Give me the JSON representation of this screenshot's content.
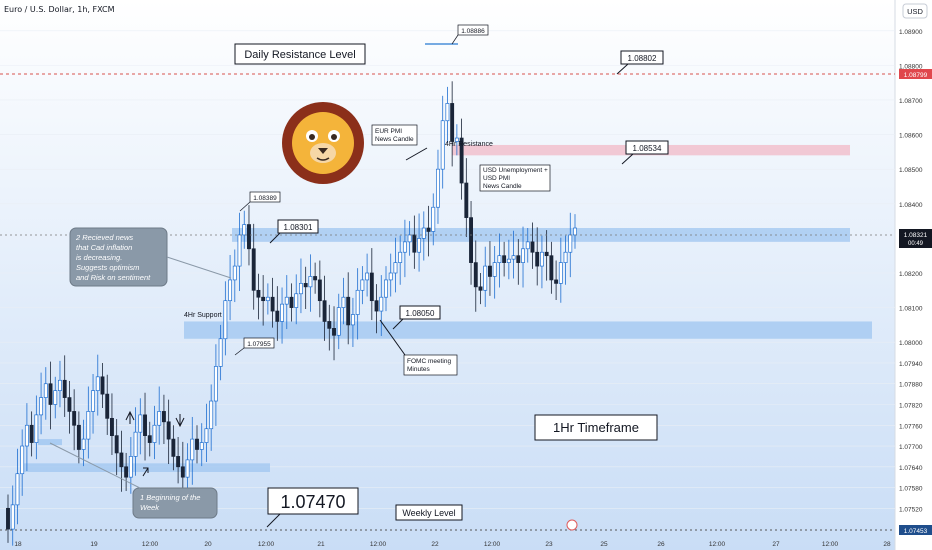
{
  "header": {
    "title": "Euro / U.S. Dollar, 1h, FXCM",
    "currency_button": "USD"
  },
  "chart_data": {
    "type": "candlestick",
    "title": "Euro / U.S. Dollar, 1h, FXCM",
    "ylim": [
      1.0744,
      1.0896
    ],
    "x_ticks": [
      "18",
      "19",
      "12:00",
      "20",
      "12:00",
      "21",
      "12:00",
      "22",
      "12:00",
      "23",
      "25",
      "26",
      "12:00",
      "27",
      "12:00",
      "28"
    ],
    "y_ticks": [
      "1.08900",
      "1.08800",
      "1.08700",
      "1.08600",
      "1.08500",
      "1.08400",
      "1.08200",
      "1.08100",
      "1.08000",
      "1.07940",
      "1.07880",
      "1.07820",
      "1.07760",
      "1.07700",
      "1.07640",
      "1.07580",
      "1.07520"
    ],
    "price_labels": [
      {
        "value": "1.08799",
        "kind": "resistance"
      },
      {
        "value": "1.08321",
        "sub": "00:49",
        "kind": "current"
      },
      {
        "value": "1.07453",
        "kind": "weekly"
      }
    ],
    "zones": [
      {
        "name": "resistance-4h-zone",
        "low": 1.0854,
        "high": 1.0857,
        "color": "#f2b8c6"
      },
      {
        "name": "resistance-band-zone",
        "low": 1.0829,
        "high": 1.0833,
        "color": "#9fc5f0"
      },
      {
        "name": "support-4h-zone",
        "low": 1.0801,
        "high": 1.0806,
        "color": "#9fc5f0"
      },
      {
        "name": "low-support-zone",
        "low": 1.07625,
        "high": 1.0765,
        "color": "#9fc5f0"
      }
    ],
    "candles_close": [
      1.0746,
      1.0753,
      1.0762,
      1.077,
      1.0776,
      1.0771,
      1.0779,
      1.0784,
      1.0788,
      1.0782,
      1.0786,
      1.0789,
      1.0784,
      1.078,
      1.0776,
      1.0769,
      1.0772,
      1.078,
      1.0786,
      1.079,
      1.0785,
      1.0778,
      1.0773,
      1.0768,
      1.0764,
      1.0761,
      1.0767,
      1.0774,
      1.0779,
      1.0773,
      1.0771,
      1.0776,
      1.078,
      1.0777,
      1.0772,
      1.0767,
      1.0764,
      1.0761,
      1.0766,
      1.0772,
      1.0769,
      1.0771,
      1.0775,
      1.0783,
      1.0793,
      1.0801,
      1.0812,
      1.0818,
      1.0822,
      1.0831,
      1.0834,
      1.0827,
      1.0815,
      1.0813,
      1.0812,
      1.0813,
      1.0809,
      1.0806,
      1.0811,
      1.0813,
      1.081,
      1.0814,
      1.0817,
      1.0816,
      1.0819,
      1.0818,
      1.0812,
      1.0806,
      1.0804,
      1.0802,
      1.081,
      1.0813,
      1.0805,
      1.0808,
      1.0815,
      1.0818,
      1.082,
      1.0812,
      1.0809,
      1.0813,
      1.0818,
      1.082,
      1.0823,
      1.0826,
      1.0829,
      1.0831,
      1.0826,
      1.083,
      1.0833,
      1.0832,
      1.0839,
      1.085,
      1.0864,
      1.0869,
      1.0858,
      1.0859,
      1.0846,
      1.0836,
      1.0823,
      1.0816,
      1.0815,
      1.0822,
      1.0819,
      1.0823,
      1.0825,
      1.0823,
      1.0824,
      1.0825,
      1.0823,
      1.0827,
      1.0829,
      1.0826,
      1.0822,
      1.0826,
      1.0825,
      1.0818,
      1.0817,
      1.0823,
      1.0826,
      1.0831,
      1.0833
    ],
    "annotations": {
      "daily_resistance": "Daily Resistance Level",
      "four_hr_resistance": "4Hr Resistance",
      "four_hr_support": "4Hr Support",
      "weekly_level": "Weekly Level",
      "timeframe": "1Hr Timeframe",
      "eur_pmi": "EUR PMI\nNews Candle",
      "usd_unemployment": "USD Unemployment +\nUSD PMI\nNews Candle",
      "fomc": "FOMC meeting\nMinutes",
      "cad_news": "2 Recieved news\nthat Cad inflation\nis decreasing.\nSuggests optimism\nand Risk on sentiment",
      "beginning_week": "1 Beginning of the\nWeek",
      "tag_08886": "1.08886",
      "tag_08802": "1.08802",
      "tag_08534": "1.08534",
      "tag_08389": "1.08389",
      "tag_08301": "1.08301",
      "tag_08050": "1.08050",
      "tag_07955": "1.07955",
      "weekly_big": "1.07470"
    }
  }
}
